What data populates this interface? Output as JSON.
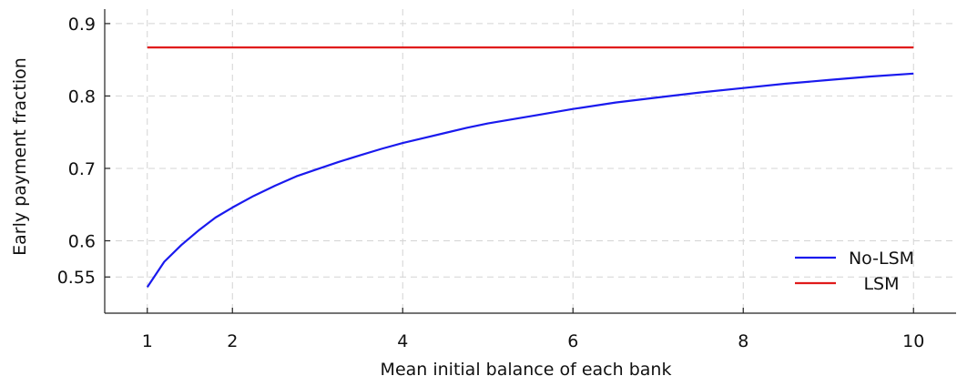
{
  "chart_data": {
    "type": "line",
    "title": "",
    "xlabel": "Mean initial balance of each bank",
    "ylabel": "Early payment fraction",
    "xlim": [
      0.5,
      10.5
    ],
    "ylim": [
      0.5,
      0.92
    ],
    "xticks": [
      1,
      2,
      4,
      6,
      8,
      10
    ],
    "xtick_labels": [
      "1",
      "2",
      "4",
      "6",
      "8",
      "10"
    ],
    "yticks": [
      0.55,
      0.6,
      0.7,
      0.8,
      0.9
    ],
    "ytick_labels": [
      "0.55",
      "0.6",
      "0.7",
      "0.8",
      "0.9"
    ],
    "grid": true,
    "legend_position": "bottom-right",
    "series": [
      {
        "name": "No-LSM",
        "color": "#1a1aee",
        "x": [
          1,
          1.2,
          1.4,
          1.6,
          1.8,
          2,
          2.25,
          2.5,
          2.75,
          3,
          3.25,
          3.5,
          3.75,
          4,
          4.25,
          4.5,
          4.75,
          5,
          5.5,
          6,
          6.5,
          7,
          7.5,
          8,
          8.5,
          9,
          9.5,
          10
        ],
        "values": [
          0.536,
          0.571,
          0.594,
          0.614,
          0.632,
          0.646,
          0.662,
          0.676,
          0.689,
          0.699,
          0.709,
          0.718,
          0.727,
          0.735,
          0.742,
          0.749,
          0.756,
          0.762,
          0.772,
          0.782,
          0.791,
          0.798,
          0.805,
          0.811,
          0.817,
          0.822,
          0.827,
          0.831
        ]
      },
      {
        "name": "LSM",
        "color": "#e01b1b",
        "x": [
          1,
          10
        ],
        "values": [
          0.867,
          0.867
        ]
      }
    ]
  }
}
